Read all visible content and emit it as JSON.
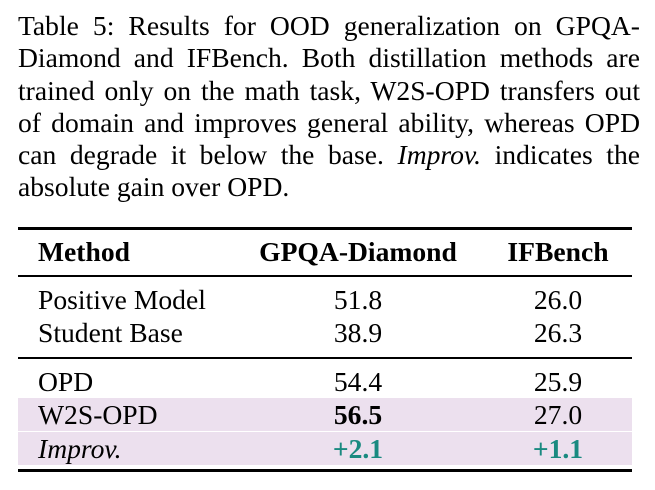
{
  "caption": {
    "lead": "Table 5: Results for OOD generalization on GPQA-Diamond and IFBench. Both distillation methods are trained only on the math task, W2S-OPD transfers out of domain and improves general ability, whereas OPD can degrade it below the base.",
    "em_term": "Improv.",
    "tail": "indicates the absolute gain over OPD."
  },
  "table": {
    "headers": [
      "Method",
      "GPQA-Diamond",
      "IFBench"
    ],
    "rows": [
      {
        "method": "Positive Model",
        "gpqa": "51.8",
        "ifbench": "26.0"
      },
      {
        "method": "Student Base",
        "gpqa": "38.9",
        "ifbench": "26.3"
      },
      {
        "method": "OPD",
        "gpqa": "54.4",
        "ifbench": "25.9"
      },
      {
        "method": "W2S-OPD",
        "gpqa": "56.5",
        "ifbench": "27.0"
      },
      {
        "method": "Improv.",
        "gpqa": "+2.1",
        "ifbench": "+1.1"
      }
    ]
  },
  "colors": {
    "highlight_row": "#ece0ee",
    "gain_text": "#1a8a80"
  }
}
